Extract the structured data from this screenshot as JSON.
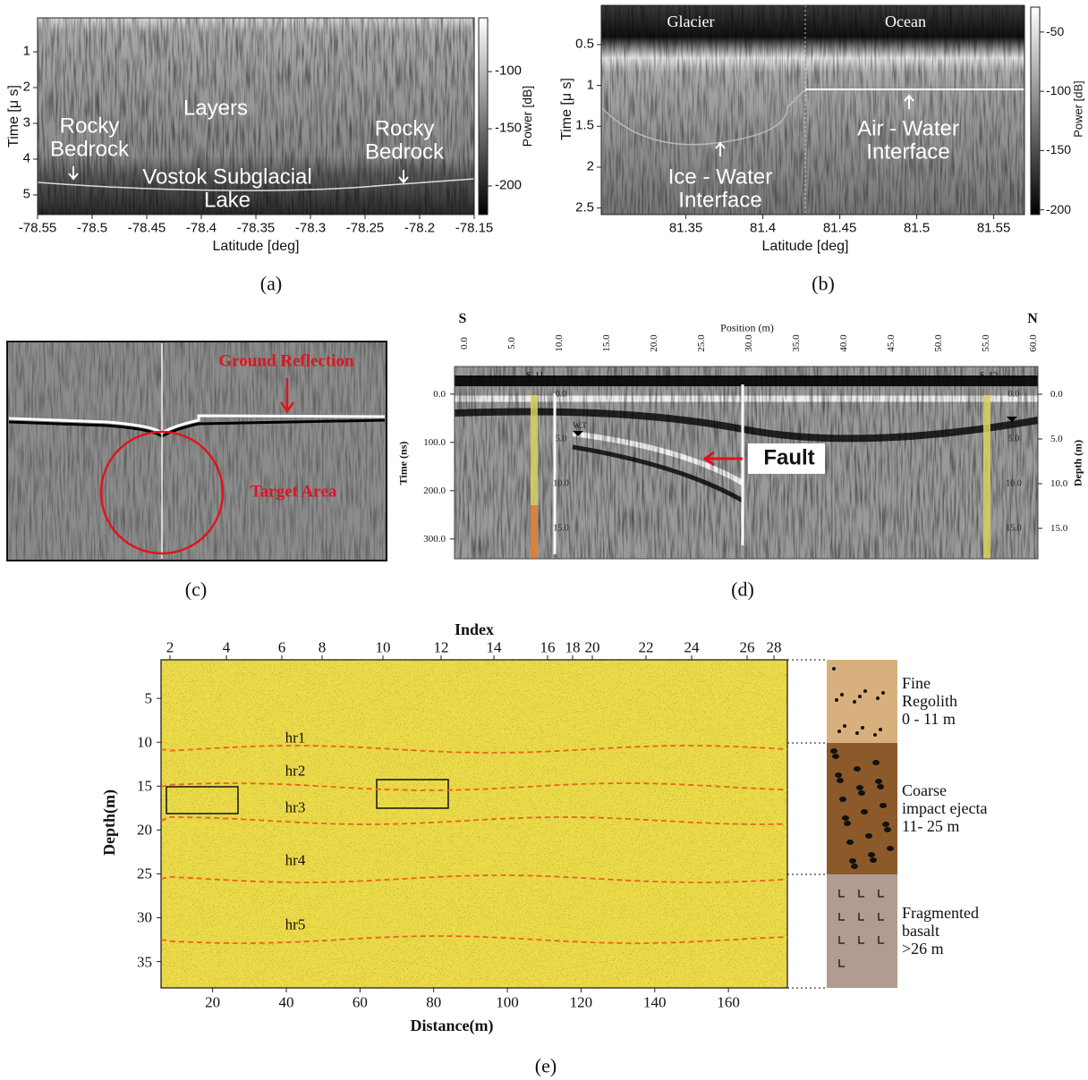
{
  "panels": {
    "a": {
      "caption": "(a)",
      "x_label": "Latitude [deg]",
      "y_label": "Time [μ s]",
      "colorbar_label": "Power [dB]",
      "xlim": [
        -78.55,
        -78.15
      ],
      "xticks": [
        -78.55,
        -78.5,
        -78.45,
        -78.4,
        -78.35,
        -78.3,
        -78.25,
        -78.2,
        -78.15
      ],
      "ylim": [
        0.05,
        5.55
      ],
      "yticks": [
        1,
        2,
        3,
        4,
        5
      ],
      "clim": [
        -53,
        -225
      ],
      "cticks": [
        -100,
        -150,
        -200
      ],
      "annotations": [
        {
          "lines": [
            "Rocky",
            "Bedrock"
          ]
        },
        {
          "lines": [
            "Layers"
          ]
        },
        {
          "lines": [
            "Vostok Subglacial",
            "Lake"
          ]
        },
        {
          "lines": [
            "Rocky",
            "Bedrock"
          ]
        }
      ]
    },
    "b": {
      "caption": "(b)",
      "x_label": "Latitude [deg]",
      "y_label": "Time [μ s]",
      "colorbar_label": "Power [dB]",
      "xlim": [
        81.295,
        81.57
      ],
      "xticks": [
        81.35,
        81.4,
        81.45,
        81.5,
        81.55
      ],
      "ylim": [
        0.02,
        2.58
      ],
      "yticks": [
        0.5,
        1,
        1.5,
        2,
        2.5
      ],
      "clim": [
        -29,
        -204
      ],
      "cticks": [
        -50,
        -100,
        -150,
        -200
      ],
      "annotations": [
        {
          "lines": [
            "Glacier"
          ]
        },
        {
          "lines": [
            "Ocean"
          ]
        },
        {
          "lines": [
            "Ice - Water",
            "Interface"
          ]
        },
        {
          "lines": [
            "Air - Water",
            "Interface"
          ]
        }
      ]
    },
    "c": {
      "caption": "(c)",
      "annotations": [
        {
          "lines": [
            "Ground Reflection"
          ]
        },
        {
          "lines": [
            "Target Area"
          ]
        }
      ]
    },
    "d": {
      "caption": "(d)",
      "left_end": "S",
      "right_end": "N",
      "x_label": "Position (m)",
      "y_label": "Time (ns)",
      "y2_label": "Depth (m)",
      "xlim": [
        -1.0,
        60.5
      ],
      "xticks": [
        {
          "value": 0,
          "label": "0.0"
        },
        {
          "value": 5,
          "label": "5.0"
        },
        {
          "value": 10,
          "label": "10.0"
        },
        {
          "value": 15,
          "label": "15.0"
        },
        {
          "value": 20,
          "label": "20.0"
        },
        {
          "value": 25,
          "label": "25.0"
        },
        {
          "value": 30,
          "label": "30.0"
        },
        {
          "value": 35,
          "label": "35.0"
        },
        {
          "value": 40,
          "label": "40.0"
        },
        {
          "value": 45,
          "label": "45.0"
        },
        {
          "value": 50,
          "label": "50.0"
        },
        {
          "value": 55,
          "label": "55.0"
        },
        {
          "value": 60,
          "label": "60.0"
        }
      ],
      "ylim": [
        -57,
        341
      ],
      "yticks": [
        {
          "value": 0,
          "label": "0.0"
        },
        {
          "value": 100,
          "label": "100.0"
        },
        {
          "value": 200,
          "label": "200.0"
        },
        {
          "value": 300,
          "label": "300.0"
        }
      ],
      "y2lim": [
        -3.1,
        18.4
      ],
      "y2ticks": [
        {
          "value": 0,
          "label": "0.0"
        },
        {
          "value": 5,
          "label": "5.0"
        },
        {
          "value": 10,
          "label": "10.0"
        },
        {
          "value": 15,
          "label": "15.0"
        }
      ],
      "boreholes": [
        "S-11",
        "S-12"
      ],
      "water_table": "W.T",
      "fault": "Fault"
    },
    "e": {
      "caption": "(e)",
      "x_label": "Distance(m)",
      "y_label": "Depth(m)",
      "top_label": "Index",
      "index_ticks": [
        2,
        4,
        6,
        8,
        10,
        12,
        14,
        16,
        18,
        20,
        22,
        24,
        26,
        28
      ],
      "xlim": [
        6,
        176
      ],
      "xticks": [
        20,
        40,
        60,
        80,
        100,
        120,
        140,
        160
      ],
      "ylim": [
        0.6,
        38
      ],
      "yticks": [
        5,
        10,
        15,
        20,
        25,
        30,
        35
      ],
      "horizons": [
        "hr1",
        "hr2",
        "hr3",
        "hr4",
        "hr5"
      ],
      "layers": [
        {
          "lines": [
            "Fine",
            "Regolith",
            "0 - 11 m"
          ]
        },
        {
          "lines": [
            "Coarse",
            "impact ejecta",
            "11- 25 m"
          ]
        },
        {
          "lines": [
            "Fragmented",
            "basalt",
            ">26 m"
          ]
        }
      ]
    }
  }
}
